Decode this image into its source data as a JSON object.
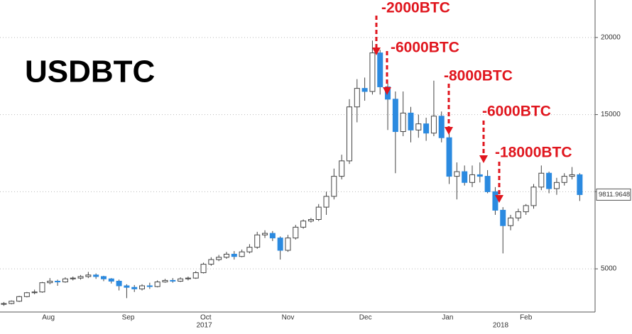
{
  "chart_data": {
    "type": "candlestick",
    "title": "USDBTC",
    "open": [
      2700,
      2750,
      2900,
      3200,
      3450,
      3500,
      4100,
      4200,
      4150,
      4350,
      4400,
      4500,
      4600,
      4500,
      4350,
      4200,
      3900,
      3800,
      3700,
      3900,
      3850,
      4150,
      4250,
      4200,
      4350,
      4400,
      4750,
      5300,
      5600,
      5750,
      5950,
      5800,
      6100,
      6400,
      7200,
      7300,
      7000,
      6200,
      7000,
      7700,
      8100,
      8200,
      9000,
      9700,
      11000,
      12000,
      15500,
      16700,
      16500,
      19000,
      16800,
      16000,
      13900,
      15100,
      14000,
      14400,
      13800,
      14900,
      13500,
      11000,
      11300,
      10600,
      11100,
      11000,
      10000,
      8800,
      7800,
      8300,
      8700,
      9100,
      10300,
      11200,
      10200,
      10600,
      11000,
      11100
    ],
    "high": [
      2850,
      2950,
      3250,
      3500,
      3650,
      4150,
      4400,
      4300,
      4450,
      4500,
      4600,
      4800,
      4700,
      4550,
      4400,
      4300,
      4000,
      3950,
      4000,
      4100,
      4250,
      4350,
      4400,
      4450,
      4500,
      4850,
      5400,
      5750,
      5900,
      6100,
      6150,
      6250,
      6600,
      7400,
      7500,
      7450,
      7100,
      7200,
      7850,
      8200,
      8300,
      9200,
      10000,
      11500,
      12400,
      16000,
      17300,
      17400,
      19800,
      19200,
      17200,
      16500,
      16500,
      15500,
      15000,
      14800,
      17200,
      15200,
      14000,
      11900,
      11700,
      11700,
      11900,
      11400,
      10300,
      9000,
      8500,
      8900,
      9200,
      10500,
      11700,
      11300,
      10900,
      11200,
      11600,
      11200
    ],
    "low": [
      2600,
      2700,
      2850,
      3150,
      3350,
      3450,
      4000,
      3900,
      4100,
      4250,
      4300,
      4400,
      4350,
      4200,
      4050,
      3600,
      3100,
      3500,
      3600,
      3700,
      3800,
      4100,
      4100,
      4150,
      4250,
      4350,
      4700,
      5200,
      5500,
      5650,
      5600,
      5750,
      6000,
      6300,
      7000,
      6800,
      5600,
      6100,
      6900,
      7600,
      8000,
      8100,
      8500,
      9500,
      10800,
      11800,
      14500,
      15900,
      16300,
      16300,
      14000,
      11200,
      13600,
      13200,
      13500,
      13300,
      13600,
      13200,
      10500,
      9500,
      10400,
      10300,
      10600,
      9900,
      8500,
      6000,
      7500,
      8100,
      8500,
      8900,
      10100,
      9900,
      9800,
      10400,
      10800,
      9400
    ],
    "close": [
      2750,
      2900,
      3200,
      3450,
      3500,
      4100,
      4200,
      4150,
      4350,
      4400,
      4500,
      4600,
      4500,
      4350,
      4200,
      3900,
      3800,
      3700,
      3900,
      3850,
      4150,
      4250,
      4200,
      4350,
      4400,
      4750,
      5300,
      5600,
      5750,
      5950,
      5800,
      6100,
      6400,
      7200,
      7300,
      7000,
      6200,
      7000,
      7700,
      8100,
      8200,
      9000,
      9700,
      11000,
      12000,
      15500,
      16700,
      16500,
      19000,
      16800,
      16000,
      13900,
      15100,
      14000,
      14400,
      13800,
      14900,
      13500,
      11000,
      11300,
      10600,
      11100,
      11000,
      10000,
      8800,
      7800,
      8300,
      8700,
      9100,
      10300,
      11200,
      10200,
      10600,
      11000,
      11100,
      9811.9648
    ],
    "up_color": "#ffffff",
    "down_color": "#2b8ae0",
    "xlim": [
      -0.5,
      77
    ],
    "xticks": [
      {
        "value": 5.8,
        "label": "Aug"
      },
      {
        "value": 16.2,
        "label": "Sep"
      },
      {
        "value": 26.3,
        "label": "Oct"
      },
      {
        "value": 37,
        "label": "Nov"
      },
      {
        "value": 47.1,
        "label": "Dec"
      },
      {
        "value": 57.8,
        "label": "Jan"
      },
      {
        "value": 68,
        "label": "Feb"
      }
    ],
    "year_ticks": [
      {
        "value": 26.1,
        "label": "2017"
      },
      {
        "value": 64.7,
        "label": "2018"
      }
    ],
    "ylim": [
      2200,
      22430
    ],
    "yticks": [
      5000,
      10000,
      15000,
      20000
    ],
    "grid": true,
    "annotations": [
      "-2000BTC",
      "-6000BTC",
      "-8000BTC",
      "-6000BTC",
      "-18000BTC"
    ],
    "annotation_color": "#e0161e"
  }
}
